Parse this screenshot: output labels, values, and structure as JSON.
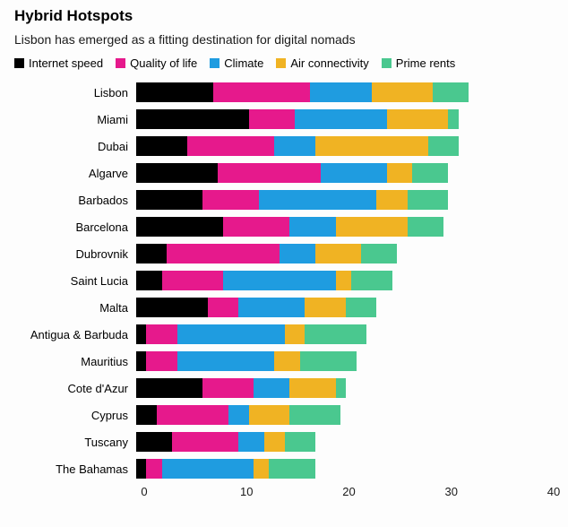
{
  "header": {
    "title": "Hybrid Hotspots",
    "subtitle": "Lisbon has emerged as a fitting destination for digital nomads"
  },
  "legend": [
    {
      "label": "Internet speed",
      "color": "#000000"
    },
    {
      "label": "Quality of life",
      "color": "#e6198c"
    },
    {
      "label": "Climate",
      "color": "#1f9ce0"
    },
    {
      "label": "Air connectivity",
      "color": "#f0b323"
    },
    {
      "label": "Prime rents",
      "color": "#4ac88f"
    }
  ],
  "chart_data": {
    "type": "bar",
    "stacked": true,
    "orientation": "horizontal",
    "title": "Hybrid Hotspots",
    "subtitle": "Lisbon has emerged as a fitting destination for digital nomads",
    "xlabel": "",
    "ylabel": "",
    "xlim": [
      0,
      40
    ],
    "xticks": [
      0,
      10,
      20,
      30,
      40
    ],
    "grid": false,
    "legend_position": "top",
    "categories": [
      "Lisbon",
      "Miami",
      "Dubai",
      "Algarve",
      "Barbados",
      "Barcelona",
      "Dubrovnik",
      "Saint Lucia",
      "Malta",
      "Antigua & Barbuda",
      "Mauritius",
      "Cote d'Azur",
      "Cyprus",
      "Tuscany",
      "The Bahamas"
    ],
    "series": [
      {
        "name": "Internet speed",
        "color": "#000000",
        "values": [
          7.5,
          11,
          5,
          8,
          6.5,
          8.5,
          3,
          2.5,
          7,
          1,
          1,
          6.5,
          2,
          3.5,
          1
        ]
      },
      {
        "name": "Quality of life",
        "color": "#e6198c",
        "values": [
          9.5,
          4.5,
          8.5,
          10,
          5.5,
          6.5,
          11,
          6,
          3,
          3,
          3,
          5,
          7,
          6.5,
          1.5
        ]
      },
      {
        "name": "Climate",
        "color": "#1f9ce0",
        "values": [
          6,
          9,
          4,
          6.5,
          11.5,
          4.5,
          3.5,
          11,
          6.5,
          10.5,
          9.5,
          3.5,
          2,
          2.5,
          9
        ]
      },
      {
        "name": "Air connectivity",
        "color": "#f0b323",
        "values": [
          6,
          6,
          11,
          2.5,
          3,
          7,
          4.5,
          1.5,
          4,
          2,
          2.5,
          4.5,
          4,
          2,
          1.5
        ]
      },
      {
        "name": "Prime rents",
        "color": "#4ac88f",
        "values": [
          3.5,
          1,
          3,
          3.5,
          4,
          3.5,
          3.5,
          4,
          3,
          6,
          5.5,
          1,
          5,
          3,
          4.5
        ]
      }
    ],
    "totals": [
      32.5,
      31.5,
      31.5,
      30.5,
      30.5,
      30,
      25.5,
      25,
      23.5,
      22.5,
      21.5,
      20.5,
      20,
      17.5,
      17.5
    ]
  }
}
